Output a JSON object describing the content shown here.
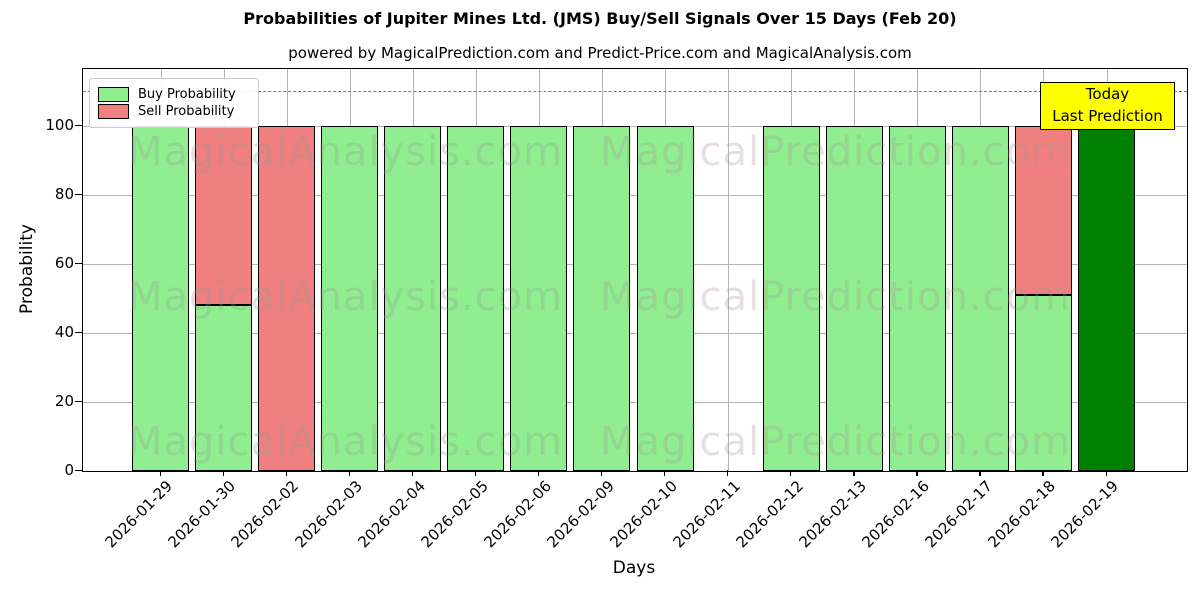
{
  "title": "Probabilities of Jupiter Mines Ltd. (JMS) Buy/Sell Signals Over 15 Days (Feb 20)",
  "subtitle": "powered by MagicalPrediction.com and Predict-Price.com and MagicalAnalysis.com",
  "annotation": {
    "line1": "Today",
    "line2": "Last Prediction",
    "bg": "#ffff00"
  },
  "legend": [
    {
      "label": "Buy Probability",
      "color": "#90EE90"
    },
    {
      "label": "Sell Probability",
      "color": "#F08080"
    }
  ],
  "watermarks": {
    "left": {
      "text": "MagicalAnalysis.com",
      "color": "#8f998f"
    },
    "right": {
      "text": "MagicalPrediction.com",
      "color": "#a89494"
    }
  },
  "chart_data": {
    "type": "bar",
    "stacked": true,
    "title": "Probabilities of Jupiter Mines Ltd. (JMS) Buy/Sell Signals Over 15 Days (Feb 20)",
    "xlabel": "Days",
    "ylabel": "Probability",
    "ylim": [
      0,
      116.5
    ],
    "yticks": [
      0,
      20,
      40,
      60,
      80,
      100
    ],
    "dashed_line_y": 110,
    "grid": true,
    "legend_position": "upper-left",
    "categories": [
      "2026-01-29",
      "2026-01-30",
      "2026-02-02",
      "2026-02-03",
      "2026-02-04",
      "2026-02-05",
      "2026-02-06",
      "2026-02-09",
      "2026-02-10",
      "2026-02-11",
      "2026-02-12",
      "2026-02-13",
      "2026-02-16",
      "2026-02-17",
      "2026-02-18",
      "2026-02-19"
    ],
    "series": [
      {
        "name": "Buy Probability",
        "color": "#90EE90",
        "values": [
          100,
          48,
          0,
          100,
          100,
          100,
          100,
          100,
          100,
          0,
          100,
          100,
          100,
          100,
          51,
          100
        ]
      },
      {
        "name": "Sell Probability",
        "color": "#F08080",
        "values": [
          0,
          52,
          100,
          0,
          0,
          0,
          0,
          0,
          0,
          0,
          0,
          0,
          0,
          0,
          49,
          0
        ]
      }
    ],
    "today_index": 15,
    "colors": {
      "buy": "#90EE90",
      "sell": "#F08080",
      "today_buy": "#008000",
      "grid": "#b4b4b4",
      "dashed": "#787878"
    }
  }
}
